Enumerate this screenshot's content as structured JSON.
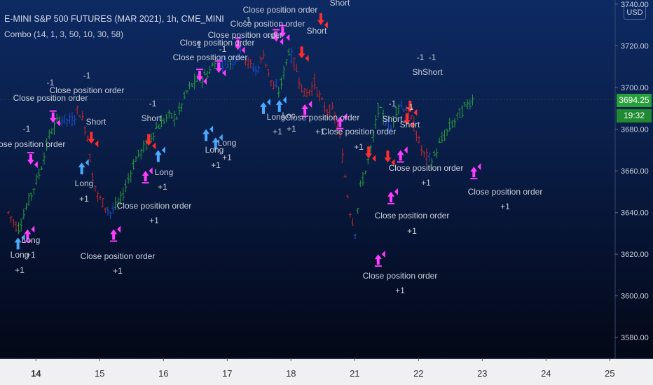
{
  "header": {
    "title": "E-MINI S&P 500 FUTURES (MAR 2021), 1h, CME_MINI",
    "study": "Combo (14, 1, 3, 50, 10, 30, 58)",
    "currency": "USD",
    "last_price": "3694.25",
    "countdown": "19:32"
  },
  "colors": {
    "up": "#27a23a",
    "down": "#c62828",
    "neutral": "#1f4fd0",
    "long_arrow": "#4aa8ff",
    "short_arrow": "#ff2d2d",
    "close_arrow": "#ff3cff",
    "text": "#c8cdd8"
  },
  "chart_data": {
    "type": "candlestick",
    "ylim": [
      3570,
      3742
    ],
    "y_ticks": [
      "3740.00",
      "3720.00",
      "3700.00",
      "3680.00",
      "3660.00",
      "3640.00",
      "3620.00",
      "3600.00",
      "3580.00"
    ],
    "x_ticks": [
      "14",
      "15",
      "16",
      "17",
      "18",
      "21",
      "22",
      "23",
      "24",
      "25"
    ],
    "grid": false,
    "price_path": [
      [
        0.0,
        3640
      ],
      [
        0.3,
        3632
      ],
      [
        0.7,
        3648
      ],
      [
        1.0,
        3660
      ],
      [
        1.3,
        3678
      ],
      [
        1.6,
        3685
      ],
      [
        2.0,
        3684
      ],
      [
        2.2,
        3690
      ],
      [
        2.5,
        3676
      ],
      [
        2.6,
        3660
      ],
      [
        2.8,
        3648
      ],
      [
        3.2,
        3640
      ],
      [
        3.5,
        3645
      ],
      [
        3.8,
        3658
      ],
      [
        4.0,
        3666
      ],
      [
        4.3,
        3672
      ],
      [
        4.6,
        3680
      ],
      [
        5.0,
        3686
      ],
      [
        5.3,
        3686
      ],
      [
        5.6,
        3698
      ],
      [
        5.8,
        3702
      ],
      [
        6.2,
        3706
      ],
      [
        6.5,
        3712
      ],
      [
        7.0,
        3712
      ],
      [
        7.3,
        3718
      ],
      [
        7.5,
        3712
      ],
      [
        7.8,
        3708
      ],
      [
        8.0,
        3716
      ],
      [
        8.3,
        3700
      ],
      [
        8.5,
        3698
      ],
      [
        8.8,
        3718
      ],
      [
        9.0,
        3710
      ],
      [
        9.3,
        3696
      ],
      [
        9.6,
        3702
      ],
      [
        9.9,
        3690
      ],
      [
        10.2,
        3688
      ],
      [
        10.4,
        3676
      ],
      [
        10.5,
        3664
      ],
      [
        10.7,
        3642
      ],
      [
        10.9,
        3630
      ],
      [
        11.0,
        3650
      ],
      [
        11.2,
        3660
      ],
      [
        11.4,
        3672
      ],
      [
        11.6,
        3690
      ],
      [
        11.8,
        3685
      ],
      [
        12.0,
        3680
      ],
      [
        12.2,
        3692
      ],
      [
        12.5,
        3690
      ],
      [
        12.8,
        3678
      ],
      [
        13.0,
        3668
      ],
      [
        13.3,
        3665
      ],
      [
        13.5,
        3672
      ],
      [
        13.8,
        3680
      ],
      [
        14.1,
        3686
      ],
      [
        14.4,
        3692
      ],
      [
        14.6,
        3695
      ]
    ],
    "day_index_of_ticks": [
      0.6,
      2.6,
      4.6,
      6.6,
      8.6,
      10.6,
      12.6,
      14.6,
      16.6,
      18.6
    ],
    "signals": [
      {
        "type": "long",
        "x": 0.3,
        "price": 3628,
        "label": "Long",
        "qty": "+1"
      },
      {
        "type": "close",
        "x": 0.6,
        "price": 3632,
        "label": "Long",
        "qty": "+1"
      },
      {
        "type": "close",
        "x": 0.7,
        "price": 3663,
        "label": "Close position order",
        "qty": "-1"
      },
      {
        "type": "close",
        "x": 1.4,
        "price": 3683,
        "label": "Close position order",
        "qty": "-1"
      },
      {
        "type": "long",
        "x": 2.3,
        "price": 3664,
        "label": "Long",
        "qty": "+1"
      },
      {
        "type": "short",
        "x": 2.6,
        "price": 3673,
        "label": "Short",
        "qty": "-1"
      },
      {
        "type": "close",
        "x": 3.3,
        "price": 3632,
        "label": "Close position order",
        "qty": "+1"
      },
      {
        "type": "short",
        "x": 4.4,
        "price": 3672,
        "label": "Short",
        "qty": "-1"
      },
      {
        "type": "long",
        "x": 4.7,
        "price": 3670,
        "label": "Long",
        "qty": "+1"
      },
      {
        "type": "close",
        "x": 4.3,
        "price": 3660,
        "label": "Close position order",
        "qty": "+1"
      },
      {
        "type": "close",
        "x": 6.0,
        "price": 3703,
        "label": "Close position order",
        "qty": "-1"
      },
      {
        "type": "long",
        "x": 6.2,
        "price": 3680,
        "label": "Long",
        "qty": "+1"
      },
      {
        "type": "long",
        "x": 6.5,
        "price": 3676,
        "label": "Long",
        "qty": "+1"
      },
      {
        "type": "close",
        "x": 6.6,
        "price": 3707,
        "label": "Close position order",
        "qty": "-1"
      },
      {
        "type": "close",
        "x": 7.2,
        "price": 3718,
        "label": "Close position order",
        "qty": "-1"
      },
      {
        "type": "long",
        "x": 8.0,
        "price": 3693,
        "label": "Long",
        "qty": "+1"
      },
      {
        "type": "close",
        "x": 8.4,
        "price": 3722,
        "label": "Close position order",
        "qty": "-1"
      },
      {
        "type": "long",
        "x": 8.5,
        "price": 3694,
        "label": "Long",
        "qty": "+1"
      },
      {
        "type": "close",
        "x": 8.6,
        "price": 3724,
        "label": "Close position order",
        "qty": "-1"
      },
      {
        "type": "short",
        "x": 9.2,
        "price": 3714,
        "label": "Short",
        "qty": "-1"
      },
      {
        "type": "close",
        "x": 9.3,
        "price": 3692,
        "label": "Close position order",
        "qty": "+1"
      },
      {
        "type": "short",
        "x": 9.8,
        "price": 3730,
        "label": "Short",
        "qty": "-1"
      },
      {
        "type": "close",
        "x": 10.4,
        "price": 3686,
        "label": "Close position order",
        "qty": "+1"
      },
      {
        "type": "short",
        "x": 11.3,
        "price": 3666,
        "label": "Short",
        "qty": "-1"
      },
      {
        "type": "close",
        "x": 11.6,
        "price": 3620,
        "label": "Close position order",
        "qty": "+1"
      },
      {
        "type": "short",
        "x": 11.9,
        "price": 3664,
        "label": "Short",
        "qty": "-1"
      },
      {
        "type": "close",
        "x": 12.0,
        "price": 3650,
        "label": "Close position order",
        "qty": "+1"
      },
      {
        "type": "close",
        "x": 12.3,
        "price": 3670,
        "label": "Close position order",
        "qty": "+1"
      },
      {
        "type": "short",
        "x": 12.5,
        "price": 3682,
        "label": "Short",
        "qty": "-1"
      },
      {
        "type": "short",
        "x": 12.6,
        "price": 3688,
        "label": "Short",
        "qty": "-1"
      },
      {
        "type": "close",
        "x": 14.6,
        "price": 3662,
        "label": "Close position order",
        "qty": "+1"
      }
    ],
    "text_labels": [
      {
        "text": "Close position order",
        "x": 400,
        "y": 14
      },
      {
        "text": "Short",
        "x": 485,
        "y": 4
      },
      {
        "text": "Close position order",
        "x": 382,
        "y": 34
      },
      {
        "text": "-1",
        "x": 353,
        "y": 29
      },
      {
        "text": "Close position order",
        "x": 350,
        "y": 50
      },
      {
        "text": "-1",
        "x": 387,
        "y": 52
      },
      {
        "text": "Short",
        "x": 452,
        "y": 44
      },
      {
        "text": "Close position order",
        "x": 310,
        "y": 61
      },
      {
        "text": "-1",
        "x": 282,
        "y": 64
      },
      {
        "text": "Close position order",
        "x": 300,
        "y": 82
      },
      {
        "text": "-1",
        "x": 318,
        "y": 70
      },
      {
        "text": "-1",
        "x": 600,
        "y": 82
      },
      {
        "text": "-1",
        "x": 617,
        "y": 82
      },
      {
        "text": "ShShort",
        "x": 610,
        "y": 103
      },
      {
        "text": "-1",
        "x": 72,
        "y": 118
      },
      {
        "text": "-1",
        "x": 124,
        "y": 108
      },
      {
        "text": "Close position order",
        "x": 124,
        "y": 129
      },
      {
        "text": "Close position order",
        "x": 72,
        "y": 140
      },
      {
        "text": "-1",
        "x": 218,
        "y": 148
      },
      {
        "text": "-1",
        "x": 560,
        "y": 148
      },
      {
        "text": "-1",
        "x": 585,
        "y": 153
      },
      {
        "text": "Short",
        "x": 216,
        "y": 169
      },
      {
        "text": "Short",
        "x": 137,
        "y": 174
      },
      {
        "text": "Short",
        "x": 560,
        "y": 170
      },
      {
        "text": "Short",
        "x": 585,
        "y": 178
      },
      {
        "text": "Long",
        "x": 394,
        "y": 167
      },
      {
        "text": "Loc",
        "x": 412,
        "y": 165
      },
      {
        "text": "Close position order",
        "x": 460,
        "y": 168
      },
      {
        "text": "+1",
        "x": 396,
        "y": 188
      },
      {
        "text": "+1",
        "x": 416,
        "y": 184
      },
      {
        "text": "+1",
        "x": 457,
        "y": 188
      },
      {
        "text": "Close position order",
        "x": 512,
        "y": 188
      },
      {
        "text": "-1",
        "x": 38,
        "y": 184
      },
      {
        "text": "Close position order",
        "x": 40,
        "y": 206
      },
      {
        "text": "Long",
        "x": 324,
        "y": 204
      },
      {
        "text": "+1",
        "x": 324,
        "y": 225
      },
      {
        "text": "Long",
        "x": 306,
        "y": 214
      },
      {
        "text": "+1",
        "x": 308,
        "y": 236
      },
      {
        "text": "+1",
        "x": 512,
        "y": 210
      },
      {
        "text": "Close position order",
        "x": 608,
        "y": 240
      },
      {
        "text": "Long",
        "x": 234,
        "y": 246
      },
      {
        "text": "+1",
        "x": 232,
        "y": 267
      },
      {
        "text": "Long",
        "x": 120,
        "y": 262
      },
      {
        "text": "+1",
        "x": 120,
        "y": 284
      },
      {
        "text": "+1",
        "x": 608,
        "y": 261
      },
      {
        "text": "Close position order",
        "x": 721,
        "y": 274
      },
      {
        "text": "+1",
        "x": 721,
        "y": 295
      },
      {
        "text": "Close position order",
        "x": 220,
        "y": 294
      },
      {
        "text": "+1",
        "x": 220,
        "y": 315
      },
      {
        "text": "Close position order",
        "x": 588,
        "y": 308
      },
      {
        "text": "+1",
        "x": 588,
        "y": 330
      },
      {
        "text": "Long",
        "x": 44,
        "y": 343
      },
      {
        "text": "Long",
        "x": 28,
        "y": 364
      },
      {
        "text": "+1",
        "x": 44,
        "y": 364
      },
      {
        "text": "+1",
        "x": 28,
        "y": 386
      },
      {
        "text": "Close position order",
        "x": 168,
        "y": 366
      },
      {
        "text": "+1",
        "x": 168,
        "y": 387
      },
      {
        "text": "Close position order",
        "x": 571,
        "y": 394
      },
      {
        "text": "+1",
        "x": 571,
        "y": 415
      }
    ]
  }
}
